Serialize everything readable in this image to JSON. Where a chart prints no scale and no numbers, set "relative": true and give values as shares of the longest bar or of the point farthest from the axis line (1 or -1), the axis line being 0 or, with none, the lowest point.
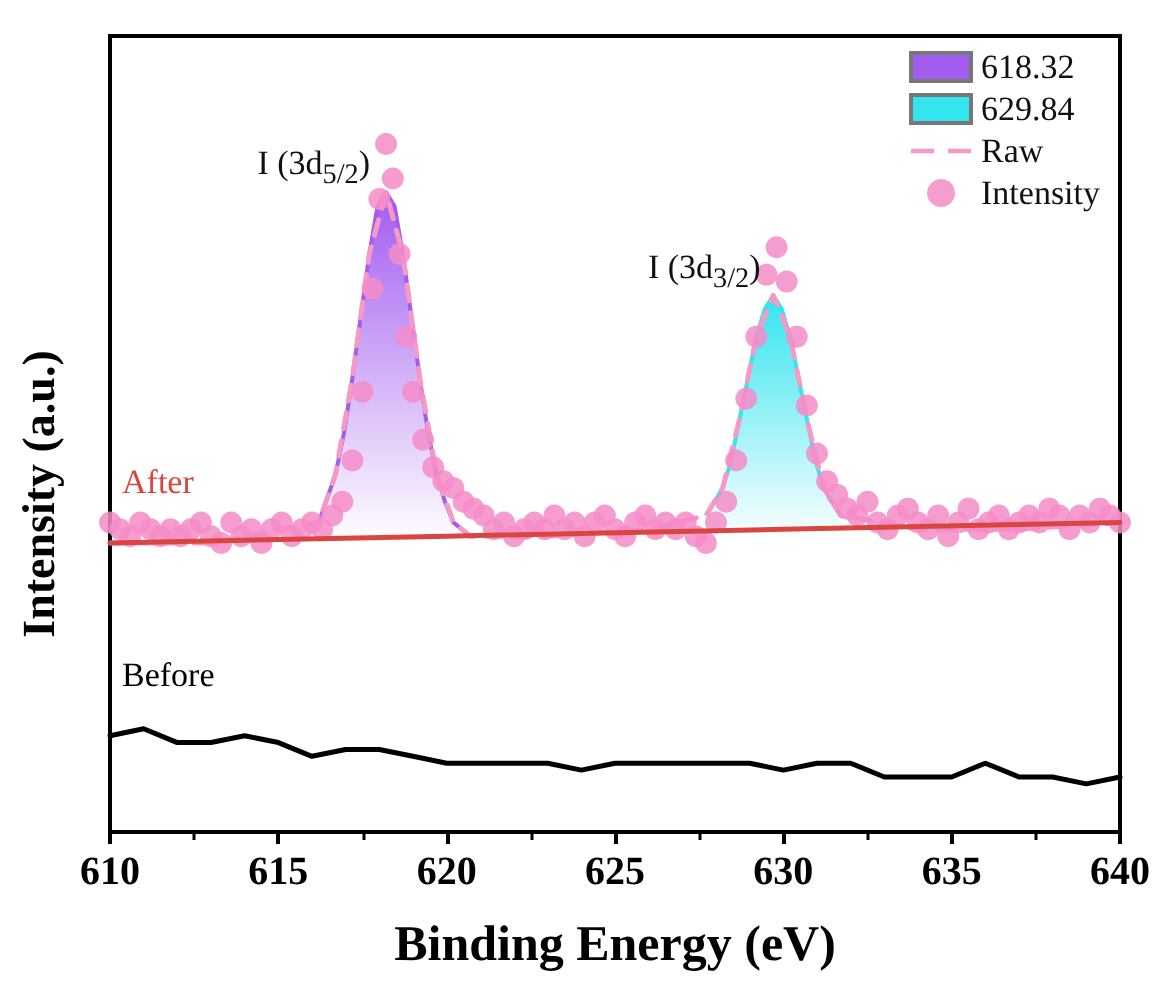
{
  "chart_data": {
    "type": "line",
    "relative": true,
    "xlabel": "Binding Energy (eV)",
    "ylabel": "Intensity (a.u.)",
    "xlim": [
      610,
      640
    ],
    "xticks": [
      610,
      615,
      620,
      625,
      630,
      635,
      640
    ],
    "legend": "top right",
    "grid": false,
    "annotations": [
      {
        "text": "I (3d$_{5/2}$)",
        "x": 618.2,
        "y": 1.0
      },
      {
        "text": "I (3d$_{3/2}$)",
        "x": 629.8,
        "y": 0.85
      }
    ],
    "series": [
      {
        "name": "618.32",
        "type": "area",
        "color": "#a25cf0",
        "x": [
          616.2,
          616.7,
          616.95,
          617.2,
          617.45,
          617.7,
          617.95,
          618.2,
          618.45,
          618.7,
          618.95,
          619.2,
          619.45,
          619.7,
          619.95,
          620.2,
          620.7
        ],
        "values": [
          0.45,
          0.52,
          0.58,
          0.66,
          0.75,
          0.84,
          0.91,
          0.93,
          0.91,
          0.84,
          0.75,
          0.66,
          0.58,
          0.52,
          0.48,
          0.45,
          0.43
        ]
      },
      {
        "name": "629.84",
        "type": "area",
        "color": "#33e5ee",
        "x": [
          627.7,
          628.2,
          628.45,
          628.7,
          628.95,
          629.2,
          629.45,
          629.7,
          629.95,
          630.2,
          630.45,
          630.7,
          630.95,
          631.2,
          631.7
        ],
        "values": [
          0.46,
          0.5,
          0.54,
          0.6,
          0.66,
          0.72,
          0.76,
          0.78,
          0.76,
          0.72,
          0.66,
          0.6,
          0.54,
          0.5,
          0.46
        ]
      },
      {
        "name": "Raw",
        "type": "line",
        "line_style": "dashed",
        "color": "#f59ac7",
        "x": [
          610,
          613,
          616.2,
          616.7,
          617.2,
          617.7,
          618.2,
          618.7,
          619.2,
          619.7,
          620.2,
          620.7,
          623,
          626,
          627.7,
          628.2,
          628.7,
          629.2,
          629.7,
          630.2,
          630.7,
          631.2,
          631.7,
          634,
          637,
          640
        ],
        "values": [
          0.42,
          0.42,
          0.45,
          0.52,
          0.66,
          0.84,
          0.93,
          0.84,
          0.66,
          0.52,
          0.45,
          0.43,
          0.43,
          0.44,
          0.46,
          0.5,
          0.6,
          0.72,
          0.78,
          0.72,
          0.6,
          0.5,
          0.46,
          0.44,
          0.44,
          0.45
        ]
      },
      {
        "name": "Intensity",
        "type": "scatter",
        "marker": "circle",
        "color": "#f58cc8",
        "x": [
          610,
          610.3,
          610.6,
          610.9,
          611.2,
          611.5,
          611.8,
          612.1,
          612.4,
          612.7,
          613,
          613.3,
          613.6,
          613.9,
          614.2,
          614.5,
          614.8,
          615.1,
          615.4,
          615.7,
          616,
          616.3,
          616.6,
          616.9,
          617.2,
          617.5,
          617.8,
          618,
          618.2,
          618.4,
          618.6,
          618.8,
          619,
          619.3,
          619.6,
          619.9,
          620.2,
          620.5,
          620.8,
          621.1,
          621.4,
          621.7,
          622,
          622.3,
          622.6,
          622.9,
          623.2,
          623.5,
          623.8,
          624.1,
          624.4,
          624.7,
          625,
          625.3,
          625.6,
          625.9,
          626.2,
          626.5,
          626.8,
          627.1,
          627.4,
          627.7,
          628,
          628.3,
          628.6,
          628.9,
          629.2,
          629.5,
          629.8,
          630.1,
          630.4,
          630.7,
          631,
          631.3,
          631.6,
          631.9,
          632.2,
          632.5,
          632.8,
          633.1,
          633.4,
          633.7,
          634,
          634.3,
          634.6,
          634.9,
          635.2,
          635.5,
          635.8,
          636.1,
          636.4,
          636.7,
          637,
          637.3,
          637.6,
          637.9,
          638.2,
          638.5,
          638.8,
          639.1,
          639.4,
          639.7,
          640
        ],
        "values": [
          0.45,
          0.44,
          0.43,
          0.45,
          0.44,
          0.43,
          0.44,
          0.43,
          0.44,
          0.45,
          0.43,
          0.42,
          0.45,
          0.43,
          0.44,
          0.42,
          0.44,
          0.45,
          0.43,
          0.44,
          0.45,
          0.44,
          0.46,
          0.48,
          0.54,
          0.64,
          0.79,
          0.92,
          1.0,
          0.95,
          0.84,
          0.72,
          0.64,
          0.57,
          0.53,
          0.51,
          0.5,
          0.48,
          0.47,
          0.46,
          0.44,
          0.45,
          0.43,
          0.44,
          0.45,
          0.44,
          0.46,
          0.44,
          0.45,
          0.43,
          0.45,
          0.46,
          0.44,
          0.43,
          0.45,
          0.46,
          0.44,
          0.45,
          0.44,
          0.45,
          0.43,
          0.42,
          0.45,
          0.48,
          0.54,
          0.63,
          0.72,
          0.81,
          0.85,
          0.8,
          0.72,
          0.62,
          0.55,
          0.51,
          0.49,
          0.47,
          0.46,
          0.48,
          0.45,
          0.44,
          0.46,
          0.47,
          0.45,
          0.44,
          0.46,
          0.43,
          0.45,
          0.47,
          0.44,
          0.45,
          0.46,
          0.44,
          0.45,
          0.46,
          0.45,
          0.47,
          0.46,
          0.44,
          0.46,
          0.45,
          0.47,
          0.46,
          0.45
        ]
      },
      {
        "name": "After",
        "type": "line",
        "line_style": "solid",
        "color": "#d9453f",
        "x": [
          610,
          620,
          630,
          640
        ],
        "values": [
          0.42,
          0.43,
          0.44,
          0.45
        ]
      },
      {
        "name": "Before",
        "type": "line",
        "line_style": "solid",
        "color": "#000000",
        "x": [
          610,
          611,
          612,
          613,
          614,
          615,
          616,
          617,
          618,
          619,
          620,
          621,
          622,
          623,
          624,
          625,
          626,
          627,
          628,
          629,
          630,
          631,
          632,
          633,
          634,
          635,
          636,
          637,
          638,
          639,
          640
        ],
        "values": [
          0.14,
          0.15,
          0.13,
          0.13,
          0.14,
          0.13,
          0.11,
          0.12,
          0.12,
          0.11,
          0.1,
          0.1,
          0.1,
          0.1,
          0.09,
          0.1,
          0.1,
          0.1,
          0.1,
          0.1,
          0.09,
          0.1,
          0.1,
          0.08,
          0.08,
          0.08,
          0.1,
          0.08,
          0.08,
          0.07,
          0.08
        ]
      }
    ]
  }
}
